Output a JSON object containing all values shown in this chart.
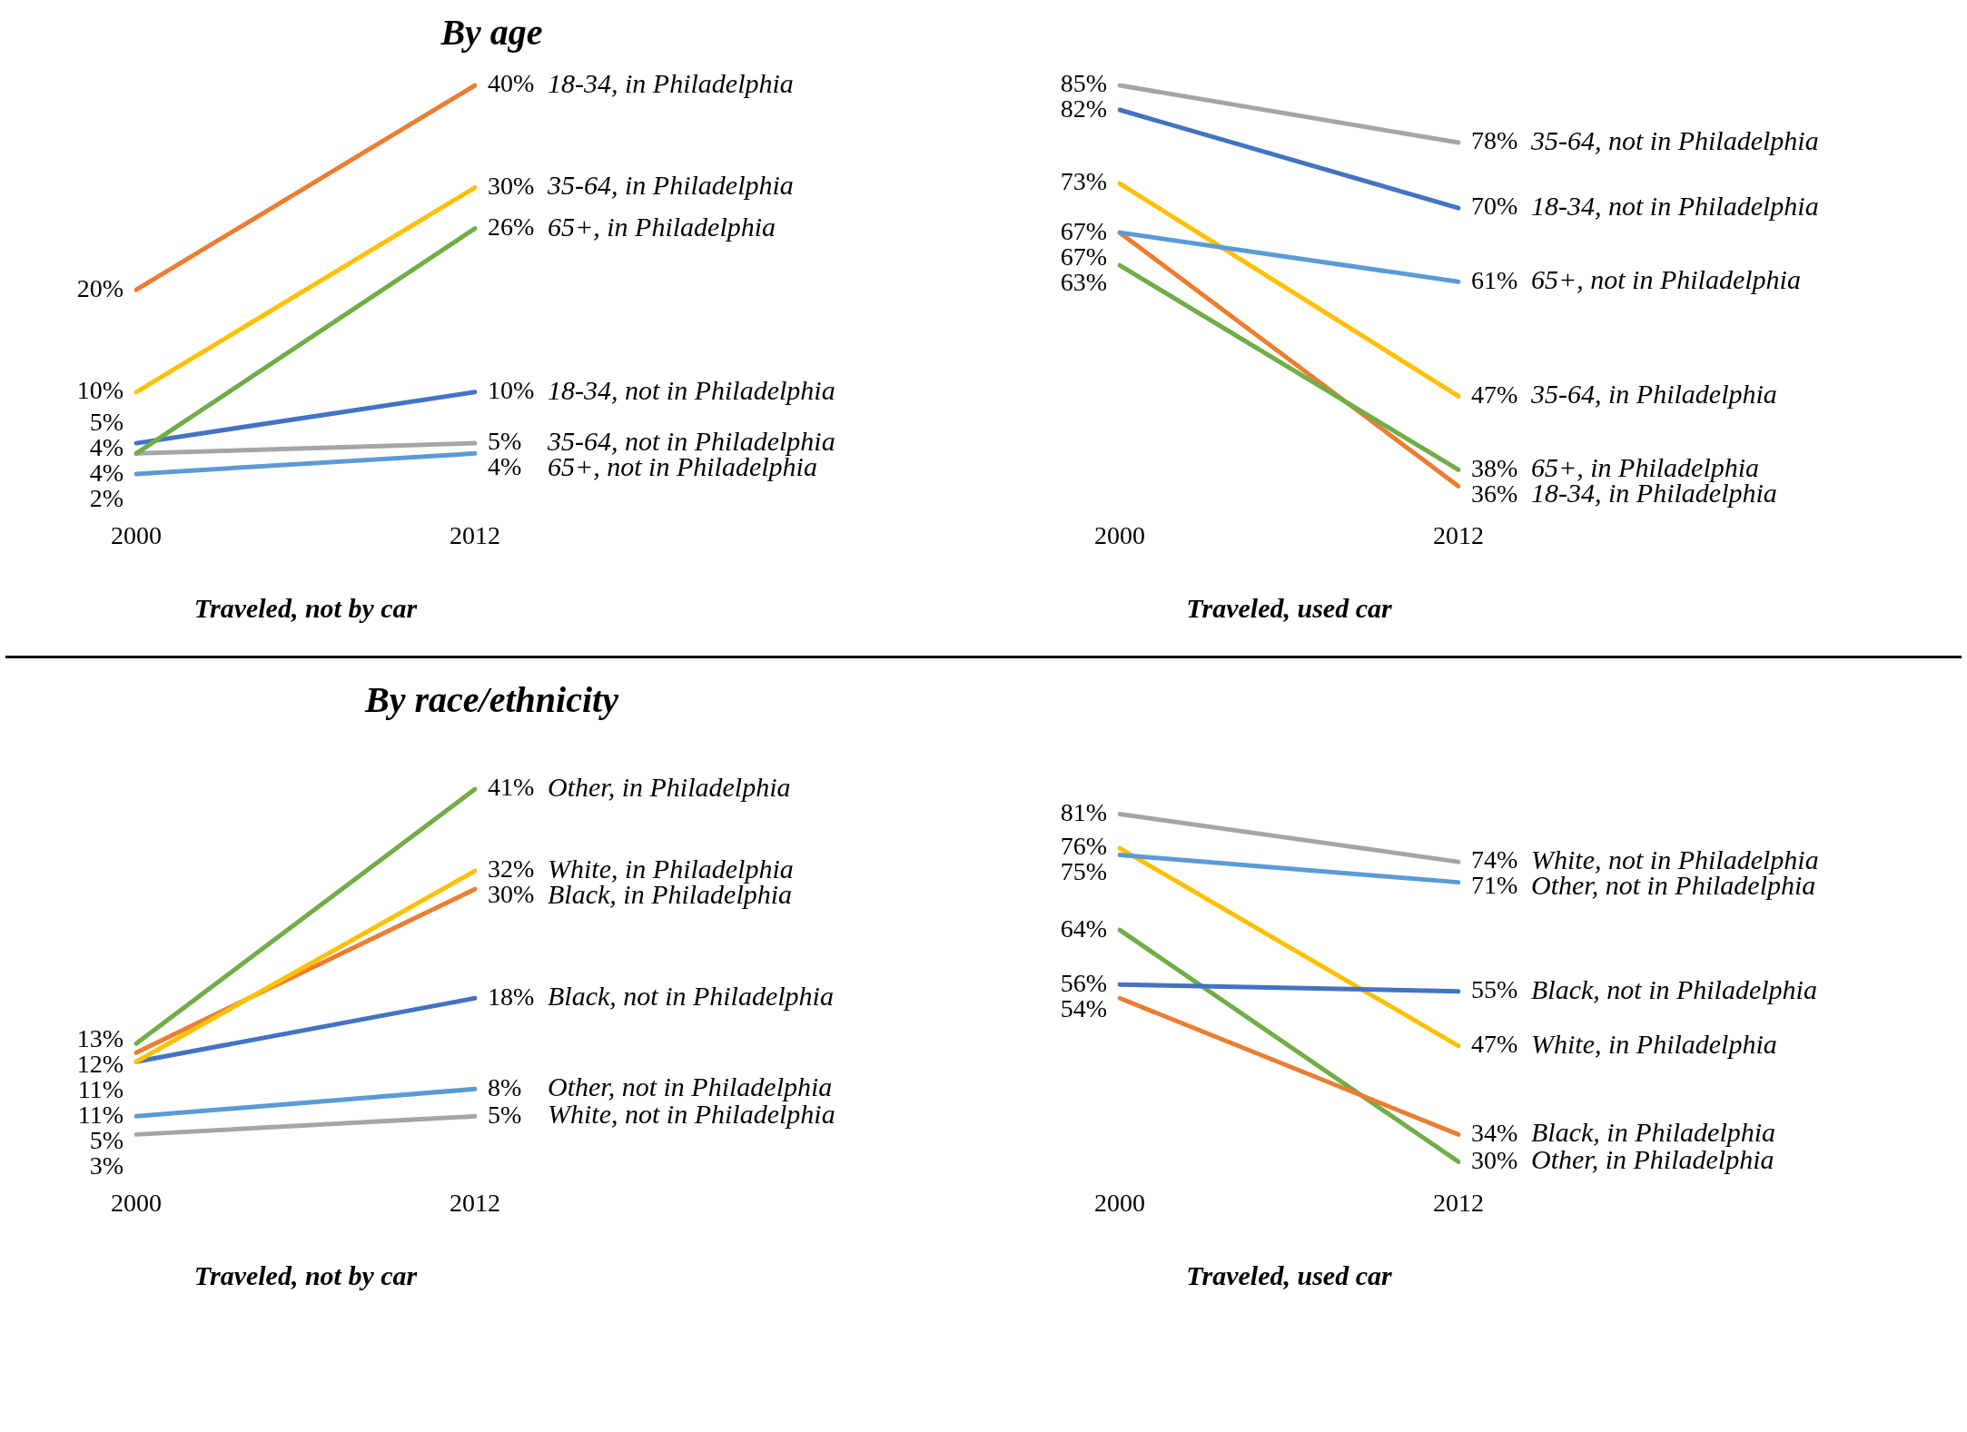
{
  "chart_data": [
    {
      "type": "line",
      "title": "By age",
      "xlabel": "Traveled, not by car",
      "categories": [
        "2000",
        "2012"
      ],
      "tick_labels": "x",
      "series": [
        {
          "name": "18-34, in Philadelphia",
          "color": "#ed7d31",
          "values": [
            20,
            40
          ],
          "value_labels": [
            "20%",
            "40%"
          ]
        },
        {
          "name": "35-64, in Philadelphia",
          "color": "#ffc000",
          "values": [
            10,
            30
          ],
          "value_labels": [
            "10%",
            "30%"
          ]
        },
        {
          "name": "65+, in Philadelphia",
          "color": "#70ad47",
          "values": [
            4,
            26
          ],
          "value_labels": [
            "4%",
            "26%"
          ]
        },
        {
          "name": "18-34, not in Philadelphia",
          "color": "#4472c4",
          "values": [
            5,
            10
          ],
          "value_labels": [
            "5%",
            "10%"
          ]
        },
        {
          "name": "35-64, not in Philadelphia",
          "color": "#a5a5a5",
          "values": [
            4,
            5
          ],
          "value_labels": [
            "4%",
            "5%"
          ]
        },
        {
          "name": "65+, not in Philadelphia",
          "color": "#5b9bd5",
          "values": [
            2,
            4
          ],
          "value_labels": [
            "2%",
            "4%"
          ]
        }
      ]
    },
    {
      "type": "line",
      "xlabel": "Traveled, used car",
      "categories": [
        "2000",
        "2012"
      ],
      "tick_labels": "x",
      "series": [
        {
          "name": "35-64, not in Philadelphia",
          "color": "#a5a5a5",
          "values": [
            85,
            78
          ],
          "value_labels": [
            "85%",
            "78%"
          ]
        },
        {
          "name": "18-34, not in Philadelphia",
          "color": "#4472c4",
          "values": [
            82,
            70
          ],
          "value_labels": [
            "82%",
            "70%"
          ]
        },
        {
          "name": "65+, not in Philadelphia",
          "color": "#5b9bd5",
          "values": [
            67,
            61
          ],
          "value_labels": [
            "67%",
            "61%"
          ]
        },
        {
          "name": "35-64, in Philadelphia",
          "color": "#ffc000",
          "values": [
            73,
            47
          ],
          "value_labels": [
            "73%",
            "47%"
          ]
        },
        {
          "name": "65+, in Philadelphia",
          "color": "#70ad47",
          "values": [
            63,
            38
          ],
          "value_labels": [
            "63%",
            "38%"
          ]
        },
        {
          "name": "18-34, in Philadelphia",
          "color": "#ed7d31",
          "values": [
            67,
            36
          ],
          "value_labels": [
            "67%",
            "36%"
          ]
        }
      ]
    },
    {
      "type": "line",
      "title": "By race/ethnicity",
      "xlabel": "Traveled, not by car",
      "categories": [
        "2000",
        "2012"
      ],
      "tick_labels": "x",
      "series": [
        {
          "name": "Other, in Philadelphia",
          "color": "#70ad47",
          "values": [
            13,
            41
          ],
          "value_labels": [
            "13%",
            "41%"
          ]
        },
        {
          "name": "White, in Philadelphia",
          "color": "#ffc000",
          "values": [
            11,
            32
          ],
          "value_labels": [
            "11%",
            "32%"
          ]
        },
        {
          "name": "Black, in Philadelphia",
          "color": "#ed7d31",
          "values": [
            12,
            30
          ],
          "value_labels": [
            "12%",
            "30%"
          ]
        },
        {
          "name": "Black, not in Philadelphia",
          "color": "#4472c4",
          "values": [
            11,
            18
          ],
          "value_labels": [
            "11%",
            "18%"
          ]
        },
        {
          "name": "Other, not in Philadelphia",
          "color": "#5b9bd5",
          "values": [
            5,
            8
          ],
          "value_labels": [
            "5%",
            "8%"
          ]
        },
        {
          "name": "White, not in Philadelphia",
          "color": "#a5a5a5",
          "values": [
            3,
            5
          ],
          "value_labels": [
            "3%",
            "5%"
          ]
        }
      ]
    },
    {
      "type": "line",
      "xlabel": "Traveled, used car",
      "categories": [
        "2000",
        "2012"
      ],
      "tick_labels": "x",
      "series": [
        {
          "name": "White, not in Philadelphia",
          "color": "#a5a5a5",
          "values": [
            81,
            74
          ],
          "value_labels": [
            "81%",
            "74%"
          ]
        },
        {
          "name": "Other, not in Philadelphia",
          "color": "#5b9bd5",
          "values": [
            75,
            71
          ],
          "value_labels": [
            "75%",
            "71%"
          ]
        },
        {
          "name": "Black, not in Philadelphia",
          "color": "#4472c4",
          "values": [
            56,
            55
          ],
          "value_labels": [
            "56%",
            "55%"
          ]
        },
        {
          "name": "White, in Philadelphia",
          "color": "#ffc000",
          "values": [
            76,
            47
          ],
          "value_labels": [
            "76%",
            "47%"
          ]
        },
        {
          "name": "Black, in Philadelphia",
          "color": "#ed7d31",
          "values": [
            54,
            34
          ],
          "value_labels": [
            "54%",
            "34%"
          ]
        },
        {
          "name": "Other, in Philadelphia",
          "color": "#70ad47",
          "values": [
            64,
            30
          ],
          "value_labels": [
            "64%",
            "30%"
          ]
        }
      ]
    }
  ]
}
